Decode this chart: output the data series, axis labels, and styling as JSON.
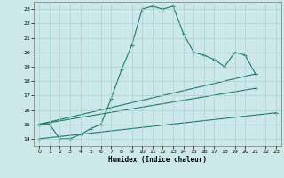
{
  "xlabel": "Humidex (Indice chaleur)",
  "background_color": "#cce8e8",
  "grid_color": "#aad0d0",
  "line_color": "#1a7a6a",
  "xlim": [
    -0.5,
    23.5
  ],
  "ylim": [
    13.5,
    23.5
  ],
  "yticks": [
    14,
    15,
    16,
    17,
    18,
    19,
    20,
    21,
    22,
    23
  ],
  "xticks": [
    0,
    1,
    2,
    3,
    4,
    5,
    6,
    7,
    8,
    9,
    10,
    11,
    12,
    13,
    14,
    15,
    16,
    17,
    18,
    19,
    20,
    21,
    22,
    23
  ],
  "curve_x": [
    0,
    1,
    2,
    3,
    4,
    5,
    6,
    7,
    8,
    9,
    10,
    11,
    12,
    13,
    14,
    15,
    16,
    17,
    18,
    19,
    20,
    21
  ],
  "curve_y": [
    15.0,
    15.0,
    14.0,
    14.0,
    14.3,
    14.7,
    15.0,
    16.8,
    18.8,
    20.5,
    23.0,
    23.2,
    23.0,
    23.2,
    21.3,
    20.0,
    19.8,
    19.5,
    19.0,
    20.0,
    19.8,
    18.5
  ],
  "line1_x": [
    0,
    21
  ],
  "line1_y": [
    15.0,
    18.5
  ],
  "line2_x": [
    0,
    21
  ],
  "line2_y": [
    15.0,
    17.5
  ],
  "line3_x": [
    0,
    23
  ],
  "line3_y": [
    14.0,
    15.8
  ]
}
